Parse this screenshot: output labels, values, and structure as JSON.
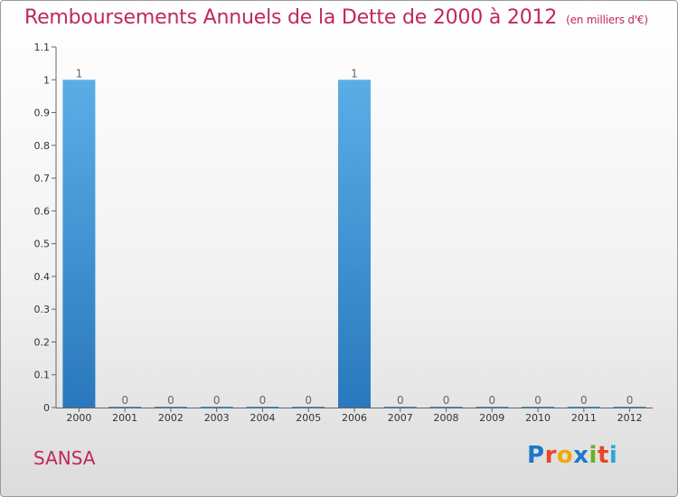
{
  "header": {
    "title": "Remboursements Annuels de la Dette de 2000 à 2012",
    "unit": "(en milliers d'€)"
  },
  "footer": {
    "commune": "SANSA",
    "logo_text": "Proxiti",
    "logo_colors": [
      "#1f77c9",
      "#e8442a",
      "#f2a900",
      "#1f77c9",
      "#6ab023",
      "#e8442a",
      "#2aa6d9"
    ]
  },
  "chart_data": {
    "type": "bar",
    "title": "Remboursements Annuels de la Dette de 2000 à 2012",
    "xlabel": "",
    "ylabel": "",
    "categories": [
      "2000",
      "2001",
      "2002",
      "2003",
      "2004",
      "2005",
      "2006",
      "2007",
      "2008",
      "2009",
      "2010",
      "2011",
      "2012"
    ],
    "values": [
      1,
      0,
      0,
      0,
      0,
      0,
      1,
      0,
      0,
      0,
      0,
      0,
      0
    ],
    "value_labels": [
      "1",
      "0",
      "0",
      "0",
      "0",
      "0",
      "1",
      "0",
      "0",
      "0",
      "0",
      "0",
      "0"
    ],
    "ylim": [
      0,
      1.1
    ],
    "yticks": [
      0,
      0.1,
      0.2,
      0.3,
      0.4,
      0.5,
      0.6,
      0.7,
      0.8,
      0.9,
      1,
      1.1
    ],
    "ytick_labels": [
      "0",
      "0.1",
      "0.2",
      "0.3",
      "0.4",
      "0.5",
      "0.6",
      "0.7",
      "0.8",
      "0.9",
      "1",
      "1.1"
    ],
    "colors": {
      "bar_top": "#5aaee6",
      "bar_bottom": "#2a78bd",
      "axis": "#666666",
      "text": "#333333"
    }
  }
}
